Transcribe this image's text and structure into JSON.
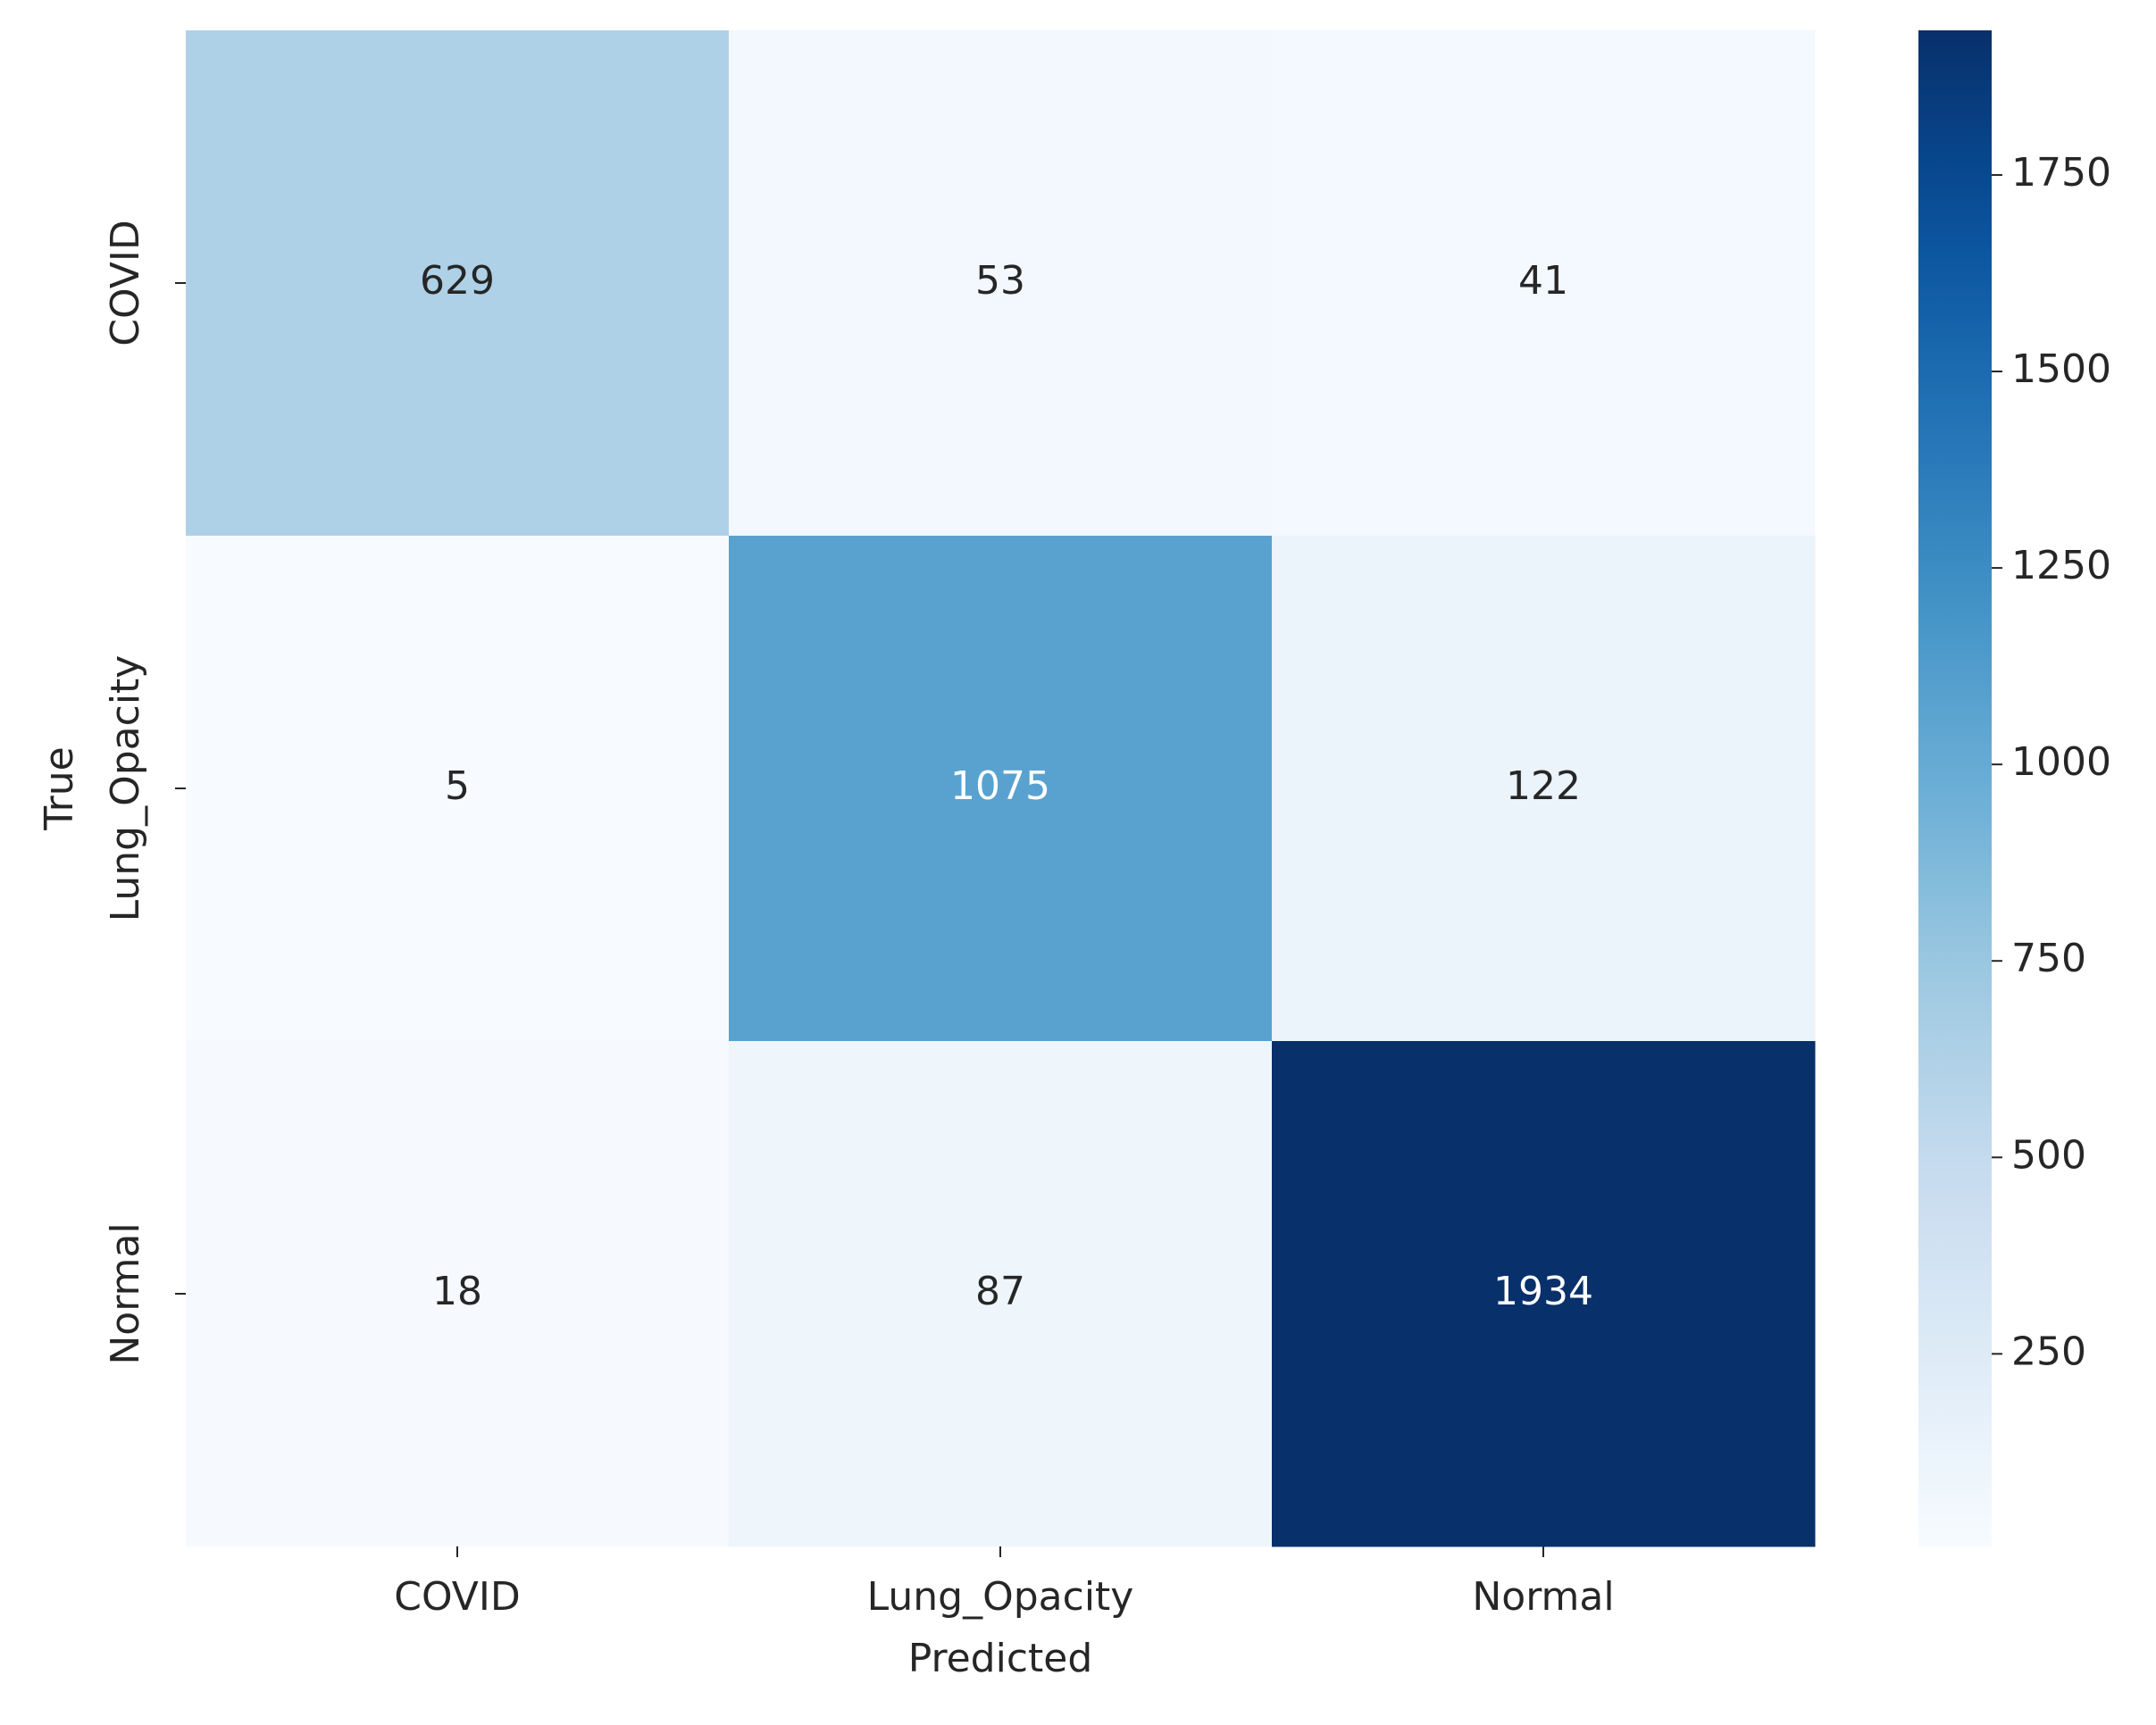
{
  "chart_data": {
    "type": "heatmap",
    "x_label": "Predicted",
    "y_label": "True",
    "x_categories": [
      "COVID",
      "Lung_Opacity",
      "Normal"
    ],
    "y_categories": [
      "COVID",
      "Lung_Opacity",
      "Normal"
    ],
    "values": [
      [
        629,
        53,
        41
      ],
      [
        5,
        1075,
        122
      ],
      [
        18,
        87,
        1934
      ]
    ],
    "colormap": "Blues",
    "clim": [
      5,
      1934
    ],
    "colorbar_ticks": [
      250,
      500,
      750,
      1000,
      1250,
      1500,
      1750
    ]
  }
}
